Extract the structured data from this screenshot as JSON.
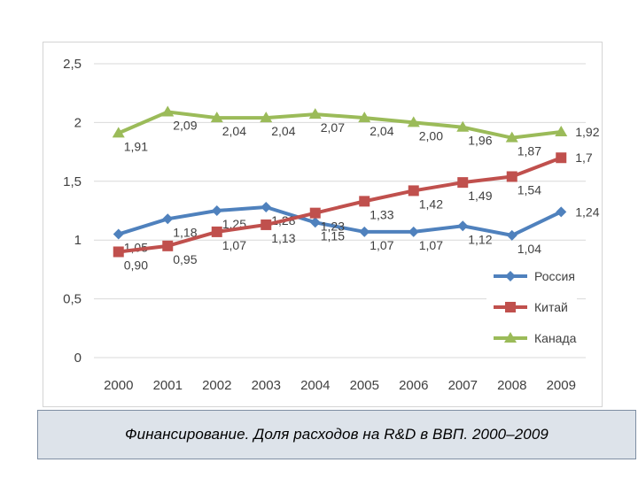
{
  "caption": "Финансирование. Доля расходов на R&D в ВВП. 2000–2009",
  "chart_data": {
    "type": "line",
    "categories": [
      "2000",
      "2001",
      "2002",
      "2003",
      "2004",
      "2005",
      "2006",
      "2007",
      "2008",
      "2009"
    ],
    "y_ticks": [
      "0",
      "0,5",
      "1",
      "1,5",
      "2",
      "2,5"
    ],
    "ylim": [
      0,
      2.5
    ],
    "grid": true,
    "legend_position": "bottom-right",
    "series": [
      {
        "name": "Россия",
        "color": "#4f81bd",
        "marker": "diamond",
        "values": [
          1.05,
          1.18,
          1.25,
          1.28,
          1.15,
          1.07,
          1.07,
          1.12,
          1.04,
          1.24
        ],
        "labels": [
          "1,05",
          "1,18",
          "1,25",
          "1,28",
          "1,15",
          "1,07",
          "1,07",
          "1,12",
          "1,04",
          "1,24"
        ]
      },
      {
        "name": "Китай",
        "color": "#c0504d",
        "marker": "square",
        "values": [
          0.9,
          0.95,
          1.07,
          1.13,
          1.23,
          1.33,
          1.42,
          1.49,
          1.54,
          1.7
        ],
        "labels": [
          "0,90",
          "0,95",
          "1,07",
          "1,13",
          "1,23",
          "1,33",
          "1,42",
          "1,49",
          "1,54",
          "1,7"
        ]
      },
      {
        "name": "Канада",
        "color": "#9bbb59",
        "marker": "triangle",
        "values": [
          1.91,
          2.09,
          2.04,
          2.04,
          2.07,
          2.04,
          2.0,
          1.96,
          1.87,
          1.92
        ],
        "labels": [
          "1,91",
          "2,09",
          "2,04",
          "2,04",
          "2,07",
          "2,04",
          "2,00",
          "1,96",
          "1,87",
          "1,92"
        ]
      }
    ]
  }
}
